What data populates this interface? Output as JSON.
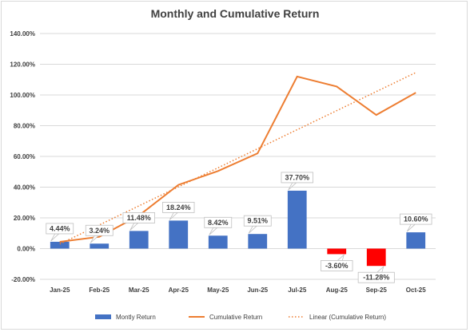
{
  "chart_data": {
    "type": "bar",
    "title": "Monthly and Cumulative Return",
    "categories": [
      "Jan-25",
      "Feb-25",
      "Mar-25",
      "Apr-25",
      "May-25",
      "Jun-25",
      "Jul-25",
      "Aug-25",
      "Sep-25",
      "Oct-25"
    ],
    "series": [
      {
        "name": "Montly Return",
        "type": "bar",
        "values": [
          4.44,
          3.24,
          11.48,
          18.24,
          8.42,
          9.51,
          37.7,
          -3.6,
          -11.28,
          10.6
        ],
        "data_labels": [
          "4.44%",
          "3.24%",
          "11.48%",
          "18.24%",
          "8.42%",
          "9.51%",
          "37.70%",
          "-3.60%",
          "-11.28%",
          "10.60%"
        ],
        "color": "#4472c4",
        "negative_color": "#ff0000"
      },
      {
        "name": "Cumulative Return",
        "type": "line",
        "values": [
          4.44,
          7.68,
          21.5,
          41.5,
          50.5,
          62.0,
          112.0,
          105.5,
          87.0,
          101.5
        ],
        "color": "#ed7d31"
      },
      {
        "name": "Linear (Cumulative Return)",
        "type": "trendline",
        "values": [
          3.0,
          15.4,
          27.8,
          40.2,
          52.6,
          65.0,
          77.4,
          89.8,
          102.2,
          114.6
        ],
        "color": "#ed7d31",
        "dash": "dotted"
      }
    ],
    "yticks": [
      "140.00%",
      "120.00%",
      "100.00%",
      "80.00%",
      "60.00%",
      "40.00%",
      "20.00%",
      "0.00%",
      "-20.00%"
    ],
    "ylim": [
      -20,
      140
    ],
    "grid": true,
    "legend_position": "bottom"
  }
}
